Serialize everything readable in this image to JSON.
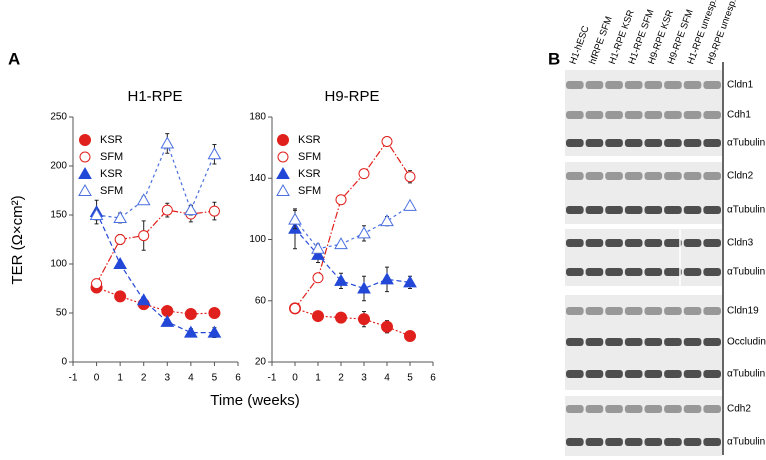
{
  "panel_a": {
    "label": "A",
    "ylabel": "TER (Ω×cm²)",
    "xlabel": "Time (weeks)"
  },
  "chart_data": [
    {
      "type": "line",
      "title": "H1-RPE",
      "x": [
        0,
        1,
        2,
        3,
        4,
        5
      ],
      "xlim": [
        -1,
        6
      ],
      "xticks": [
        -1,
        0,
        1,
        2,
        3,
        4,
        5,
        6
      ],
      "ylim": [
        0,
        250
      ],
      "yticks": [
        0,
        50,
        100,
        150,
        200,
        250
      ],
      "series": [
        {
          "name": "KSR",
          "color": "#e0201c",
          "marker": "circle",
          "filled": true,
          "linestyle": "dotted",
          "values": [
            76,
            67,
            59,
            52,
            49,
            50
          ],
          "errors": [
            4,
            3,
            3,
            3,
            3,
            3
          ]
        },
        {
          "name": "SFM",
          "color": "#e0201c",
          "marker": "circle",
          "filled": false,
          "linestyle": "dashdot",
          "values": [
            80,
            125,
            129,
            155,
            151,
            154
          ],
          "errors": [
            3,
            5,
            15,
            7,
            8,
            9
          ]
        },
        {
          "name": "KSR",
          "color": "#2348d8",
          "marker": "triangle",
          "filled": true,
          "linestyle": "dashed",
          "values": [
            153,
            100,
            63,
            41,
            30,
            30
          ],
          "errors": [
            12,
            2,
            3,
            3,
            4,
            5
          ]
        },
        {
          "name": "SFM",
          "color": "#4a6fe0",
          "marker": "triangle",
          "filled": false,
          "linestyle": "shortdash",
          "values": [
            150,
            147,
            165,
            223,
            155,
            212
          ],
          "errors": [
            5,
            5,
            4,
            10,
            5,
            10
          ]
        }
      ]
    },
    {
      "type": "line",
      "title": "H9-RPE",
      "x": [
        0,
        1,
        2,
        3,
        4,
        5
      ],
      "xlim": [
        -1,
        6
      ],
      "xticks": [
        -1,
        0,
        1,
        2,
        3,
        4,
        5,
        6
      ],
      "ylim": [
        20,
        180
      ],
      "yticks": [
        20,
        60,
        100,
        140,
        180
      ],
      "series": [
        {
          "name": "KSR",
          "color": "#e0201c",
          "marker": "circle",
          "filled": true,
          "linestyle": "dotted",
          "values": [
            55,
            50,
            49,
            48,
            43,
            37
          ],
          "errors": [
            2,
            2,
            2,
            5,
            4,
            2
          ]
        },
        {
          "name": "SFM",
          "color": "#e0201c",
          "marker": "circle",
          "filled": false,
          "linestyle": "dashdot",
          "values": [
            55,
            75,
            126,
            143,
            164,
            141
          ],
          "errors": [
            2,
            2,
            3,
            2,
            3,
            4
          ]
        },
        {
          "name": "KSR",
          "color": "#2348d8",
          "marker": "triangle",
          "filled": true,
          "linestyle": "dashed",
          "values": [
            107,
            90,
            73,
            68,
            74,
            72
          ],
          "errors": [
            13,
            5,
            5,
            8,
            8,
            4
          ]
        },
        {
          "name": "SFM",
          "color": "#4a6fe0",
          "marker": "triangle",
          "filled": false,
          "linestyle": "shortdash",
          "values": [
            113,
            94,
            97,
            104,
            112,
            122
          ],
          "errors": [
            6,
            3,
            2,
            5,
            3,
            2
          ]
        }
      ]
    }
  ],
  "panel_b": {
    "label": "B",
    "lanes": [
      "H1-hESC",
      "hfRPE SFM",
      "H1-RPE KSR",
      "H1-RPE SFM",
      "H9-RPE KSR",
      "H9-RPE SFM",
      "H1-RPE unresp.",
      "H9-RPE unresp."
    ],
    "rows": [
      "Cldn1",
      "Cdh1",
      "αTubulin",
      "Cldn2",
      "αTubulin",
      "Cldn3",
      "αTubulin",
      "Cldn19",
      "Occludin",
      "αTubulin",
      "Cdh2",
      "αTubulin"
    ]
  }
}
